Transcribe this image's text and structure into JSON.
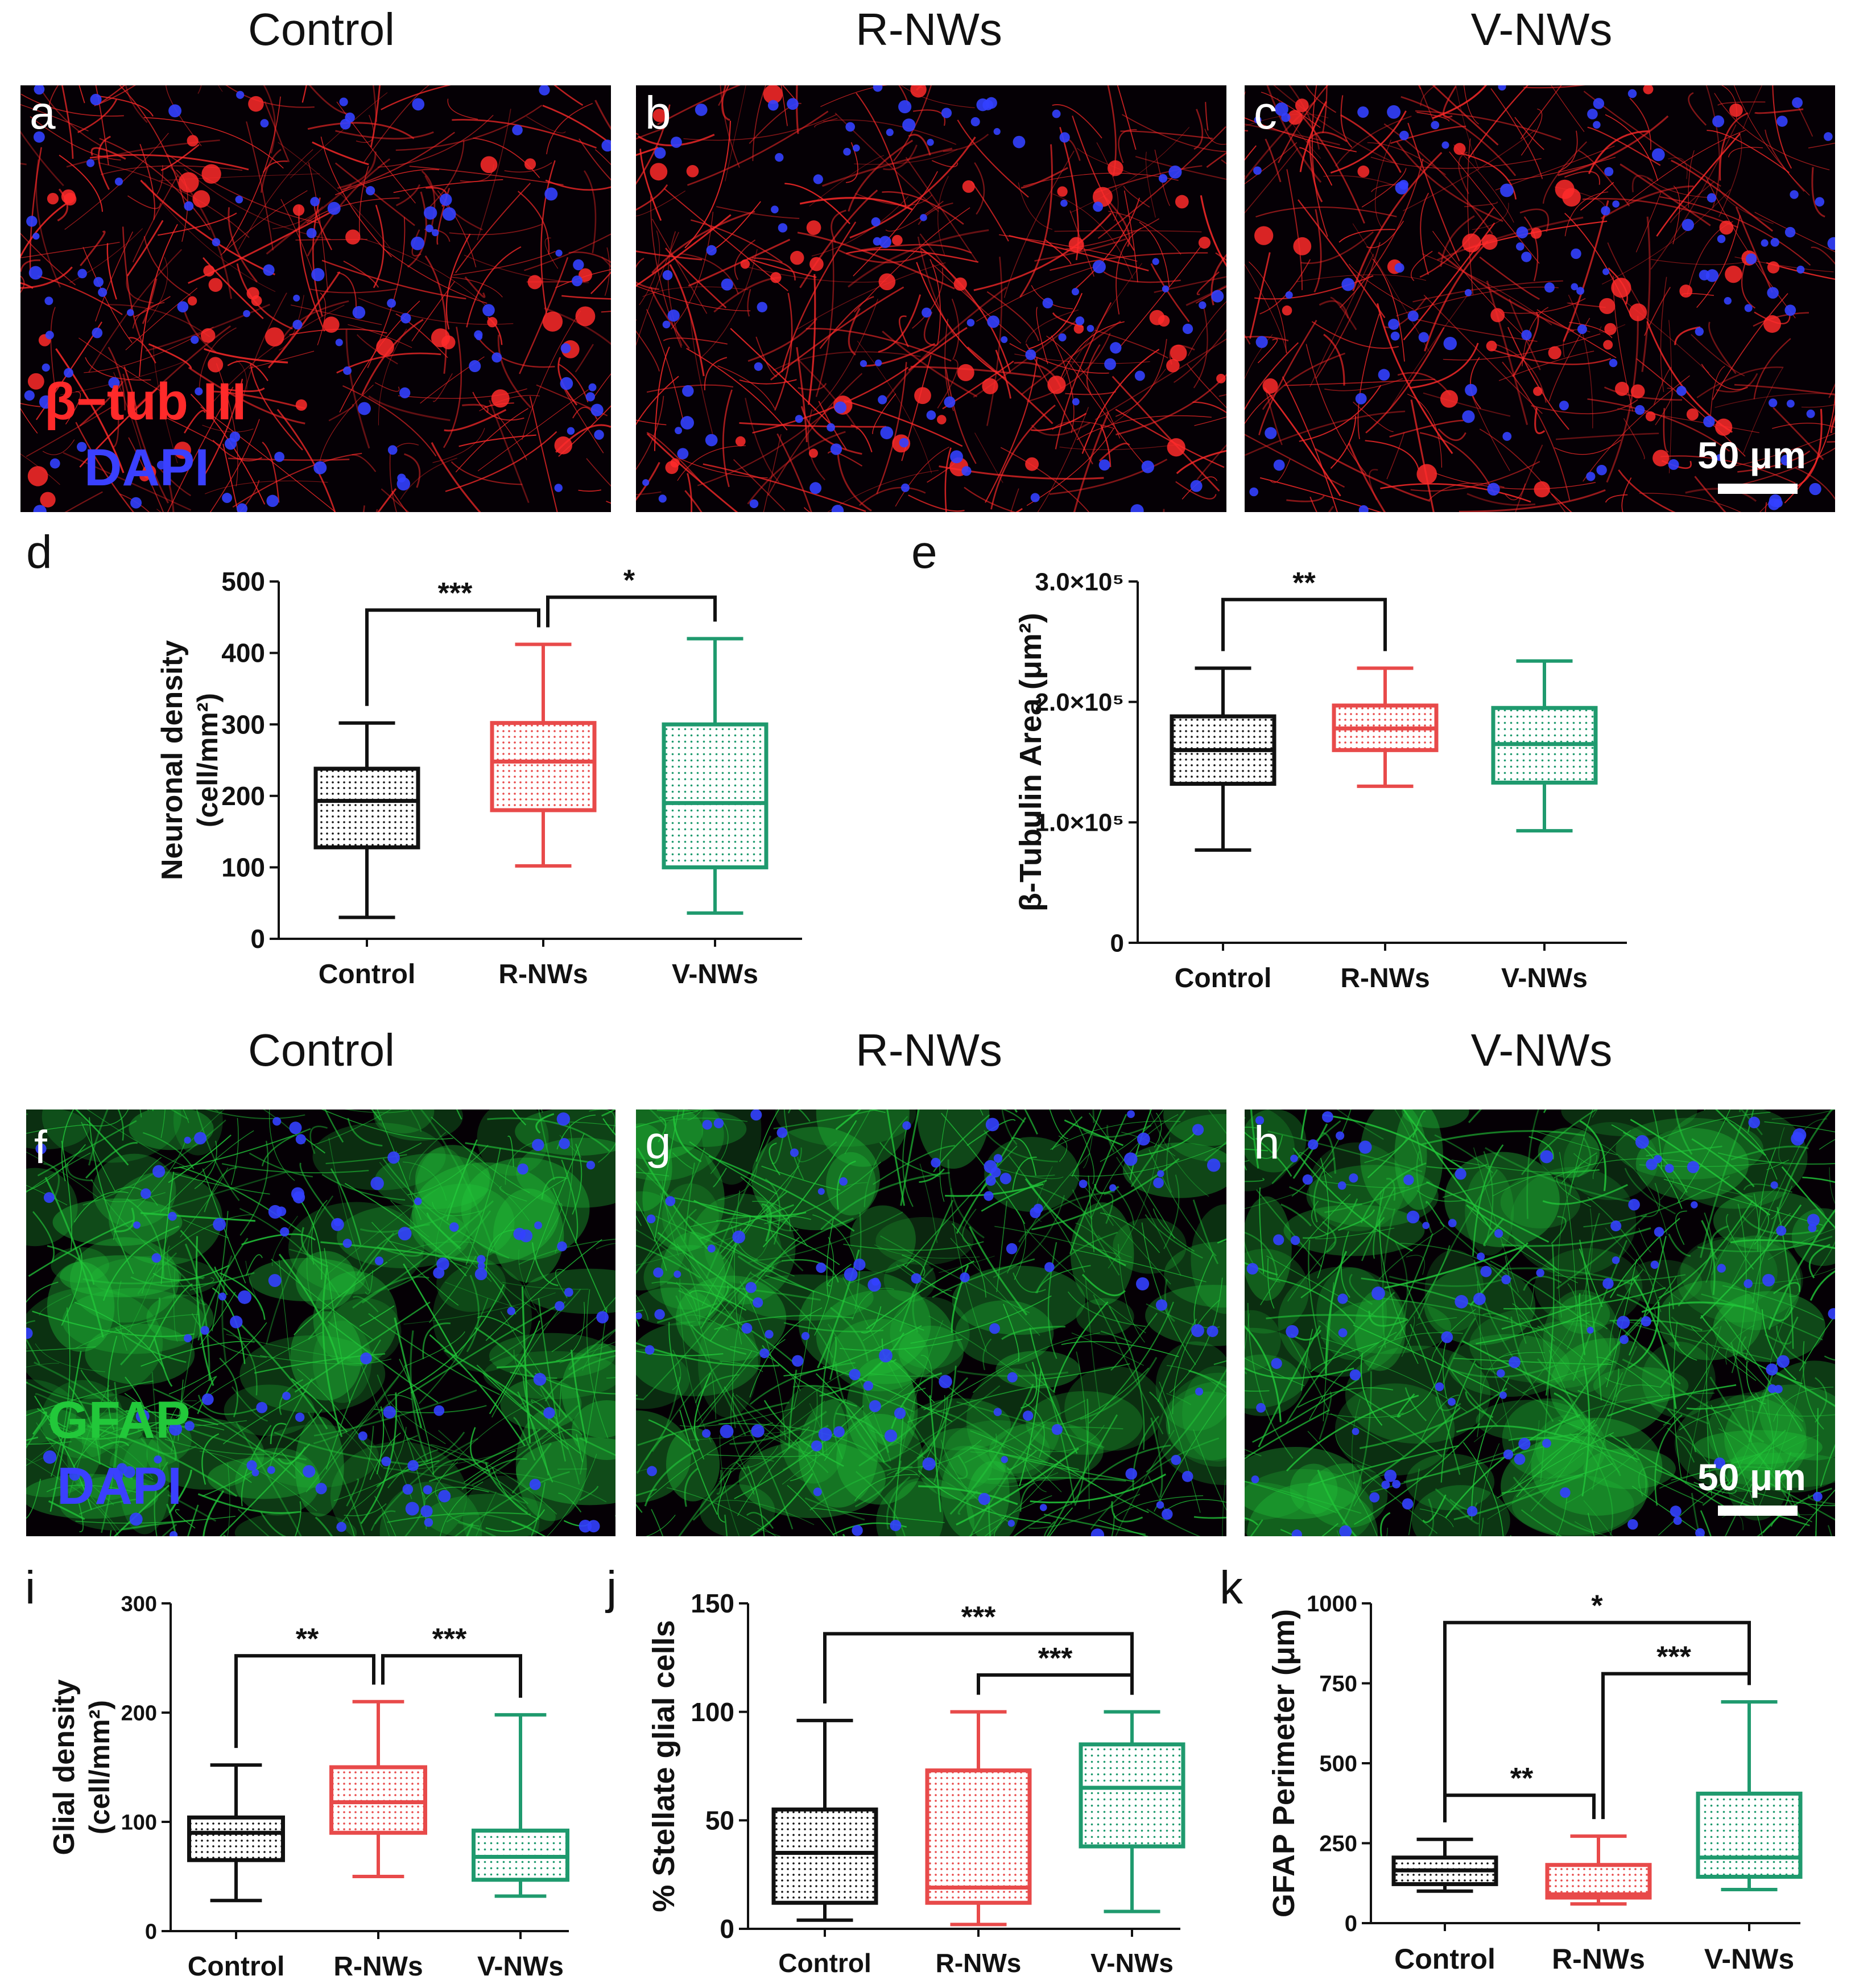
{
  "top_titles": [
    "Control",
    "R-NWs",
    "V-NWs"
  ],
  "bottom_titles": [
    "Control",
    "R-NWs",
    "V-NWs"
  ],
  "top_panels": [
    {
      "letter": "a"
    },
    {
      "letter": "b"
    },
    {
      "letter": "c"
    }
  ],
  "bottom_panels": [
    {
      "letter": "f"
    },
    {
      "letter": "g"
    },
    {
      "letter": "h"
    }
  ],
  "top_stain": {
    "marker": "β−tub III",
    "nuclear": "DAPI"
  },
  "bottom_stain": {
    "marker": "GFAP",
    "nuclear": "DAPI"
  },
  "scale_label": "50 μm",
  "colors": {
    "control": "#111111",
    "r_nws": "#e84a4a",
    "v_nws": "#1f9a6e",
    "neuron": "#ff2a2a",
    "glia": "#22c83a",
    "dapi": "#3340ff"
  },
  "chart_data": [
    {
      "panel": "d",
      "type": "boxplot",
      "ylabel_line1": "Neuronal density",
      "ylabel_line2": "(cell/mm²)",
      "ylim": [
        0,
        500
      ],
      "yticks": [
        0,
        100,
        200,
        300,
        400,
        500
      ],
      "yticklabels": [
        "0",
        "100",
        "200",
        "300",
        "400",
        "500"
      ],
      "categories": [
        "Control",
        "R-NWs",
        "V-NWs"
      ],
      "boxes": [
        {
          "min": 30,
          "q1": 128,
          "median": 193,
          "q3": 238,
          "max": 302
        },
        {
          "min": 102,
          "q1": 180,
          "median": 248,
          "q3": 302,
          "max": 412
        },
        {
          "min": 36,
          "q1": 100,
          "median": 190,
          "q3": 300,
          "max": 420
        }
      ],
      "significance": [
        {
          "from": 0,
          "to": 1,
          "label": "***",
          "y": 460
        },
        {
          "from": 1,
          "to": 2,
          "label": "*",
          "y": 478
        }
      ]
    },
    {
      "panel": "e",
      "type": "boxplot",
      "ylabel": "β-Tubulin Area (μm²)",
      "ylim": [
        0,
        300000
      ],
      "yticks": [
        0,
        100000,
        200000,
        300000
      ],
      "yticklabels": [
        "0",
        "1.0×10⁵",
        "2.0×10⁵",
        "3.0×10⁵"
      ],
      "categories": [
        "Control",
        "R-NWs",
        "V-NWs"
      ],
      "boxes": [
        {
          "min": 77000,
          "q1": 132000,
          "median": 160000,
          "q3": 188000,
          "max": 228000
        },
        {
          "min": 130000,
          "q1": 160000,
          "median": 178000,
          "q3": 197000,
          "max": 228000
        },
        {
          "min": 93000,
          "q1": 133000,
          "median": 165000,
          "q3": 195000,
          "max": 234000
        }
      ],
      "significance": [
        {
          "from": 0,
          "to": 1,
          "label": "**",
          "y": 285000
        }
      ]
    },
    {
      "panel": "i",
      "type": "boxplot",
      "ylabel_line1": "Glial density",
      "ylabel_line2": "(cell/mm²)",
      "ylim": [
        0,
        300
      ],
      "yticks": [
        0,
        100,
        200,
        300
      ],
      "yticklabels": [
        "0",
        "100",
        "200",
        "300"
      ],
      "categories": [
        "Control",
        "R-NWs",
        "V-NWs"
      ],
      "boxes": [
        {
          "min": 28,
          "q1": 65,
          "median": 90,
          "q3": 104,
          "max": 152
        },
        {
          "min": 50,
          "q1": 90,
          "median": 118,
          "q3": 150,
          "max": 210
        },
        {
          "min": 32,
          "q1": 47,
          "median": 68,
          "q3": 92,
          "max": 198
        }
      ],
      "significance": [
        {
          "from": 0,
          "to": 1,
          "label": "**",
          "y": 252
        },
        {
          "from": 1,
          "to": 2,
          "label": "***",
          "y": 252
        }
      ]
    },
    {
      "panel": "j",
      "type": "boxplot",
      "ylabel": "% Stellate glial cells",
      "ylim": [
        0,
        150
      ],
      "yticks": [
        0,
        50,
        100,
        150
      ],
      "yticklabels": [
        "0",
        "50",
        "100",
        "150"
      ],
      "categories": [
        "Control",
        "R-NWs",
        "V-NWs"
      ],
      "boxes": [
        {
          "min": 4,
          "q1": 12,
          "median": 35,
          "q3": 55,
          "max": 96
        },
        {
          "min": 2,
          "q1": 12,
          "median": 19,
          "q3": 73,
          "max": 100
        },
        {
          "min": 8,
          "q1": 38,
          "median": 65,
          "q3": 85,
          "max": 100
        }
      ],
      "significance": [
        {
          "from": 0,
          "to": 2,
          "label": "***",
          "y": 136
        },
        {
          "from": 1,
          "to": 2,
          "label": "***",
          "y": 117
        }
      ]
    },
    {
      "panel": "k",
      "type": "boxplot",
      "ylabel": "GFAP Perimeter (μm)",
      "ylim": [
        0,
        1000
      ],
      "yticks": [
        0,
        250,
        500,
        750,
        1000
      ],
      "yticklabels": [
        "0",
        "250",
        "500",
        "750",
        "1000"
      ],
      "categories": [
        "Control",
        "R-NWs",
        "V-NWs"
      ],
      "boxes": [
        {
          "min": 100,
          "q1": 122,
          "median": 165,
          "q3": 205,
          "max": 262
        },
        {
          "min": 60,
          "q1": 80,
          "median": 90,
          "q3": 182,
          "max": 272
        },
        {
          "min": 105,
          "q1": 145,
          "median": 205,
          "q3": 405,
          "max": 692
        }
      ],
      "significance": [
        {
          "from": 0,
          "to": 2,
          "label": "*",
          "y": 940
        },
        {
          "from": 1,
          "to": 2,
          "label": "***",
          "y": 780
        },
        {
          "from": 0,
          "to": 1,
          "label": "**",
          "y": 400
        }
      ]
    }
  ]
}
